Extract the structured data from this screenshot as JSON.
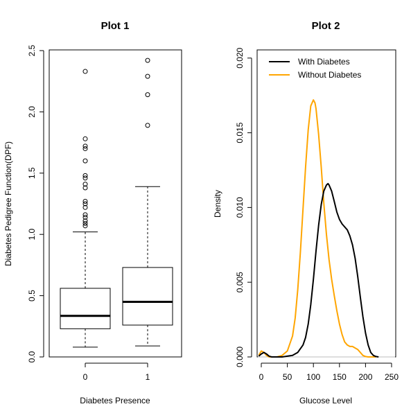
{
  "chart_data": [
    {
      "type": "box",
      "title": "Plot 1",
      "xlabel": "Diabetes Presence",
      "ylabel": "Diabetes Pedigree Function(DPF)",
      "ylim": [
        0,
        2.5
      ],
      "yticks": [
        "0.0",
        "0.5",
        "1.0",
        "1.5",
        "2.0",
        "2.5"
      ],
      "categories": [
        "0",
        "1"
      ],
      "boxes": [
        {
          "category": "0",
          "whisker_low": 0.08,
          "q1": 0.23,
          "median": 0.335,
          "q3": 0.56,
          "whisker_high": 1.02,
          "outliers": [
            1.07,
            1.09,
            1.11,
            1.14,
            1.16,
            1.22,
            1.25,
            1.27,
            1.38,
            1.41,
            1.46,
            1.48,
            1.6,
            1.7,
            1.72,
            1.78,
            2.33
          ]
        },
        {
          "category": "1",
          "whisker_low": 0.09,
          "q1": 0.26,
          "median": 0.45,
          "q3": 0.73,
          "whisker_high": 1.39,
          "outliers": [
            1.89,
            2.14,
            2.29,
            2.42
          ]
        }
      ]
    },
    {
      "type": "line",
      "title": "Plot 2",
      "xlabel": "Glucose Level",
      "ylabel": "Density",
      "xlim": [
        -8,
        258
      ],
      "ylim": [
        0,
        0.0205
      ],
      "xticks": [
        "0",
        "50",
        "100",
        "150",
        "200",
        "250"
      ],
      "yticks": [
        "0.000",
        "0.005",
        "0.010",
        "0.015",
        "0.020"
      ],
      "legend": "top-left",
      "colors": {
        "with": "#000000",
        "without": "#FFA500",
        "baseline": "#BEBEBE"
      },
      "series": [
        {
          "name": "With Diabetes",
          "x": [
            -5,
            0,
            5,
            10,
            15,
            20,
            30,
            40,
            50,
            60,
            70,
            80,
            85,
            90,
            95,
            100,
            105,
            110,
            115,
            120,
            125,
            128,
            130,
            135,
            140,
            145,
            150,
            155,
            160,
            165,
            170,
            175,
            180,
            185,
            190,
            195,
            200,
            205,
            210,
            215,
            220,
            225
          ],
          "y": [
            5e-05,
            0.0002,
            0.0003,
            0.0002,
            5e-05,
            0,
            0,
            0,
            5e-05,
            0.0001,
            0.0003,
            0.0008,
            0.0013,
            0.0022,
            0.0035,
            0.0052,
            0.0071,
            0.0088,
            0.0102,
            0.0111,
            0.0115,
            0.0116,
            0.0115,
            0.0111,
            0.0104,
            0.0097,
            0.0092,
            0.0089,
            0.0087,
            0.0085,
            0.0081,
            0.0075,
            0.0066,
            0.0054,
            0.004,
            0.0027,
            0.0016,
            0.0008,
            0.0003,
            0.0001,
            3e-05,
            0
          ]
        },
        {
          "name": "Without Diabetes",
          "x": [
            -5,
            0,
            5,
            10,
            15,
            20,
            25,
            30,
            40,
            50,
            60,
            65,
            70,
            75,
            80,
            85,
            90,
            95,
            100,
            103,
            105,
            110,
            115,
            120,
            125,
            130,
            135,
            140,
            145,
            150,
            155,
            160,
            165,
            170,
            175,
            180,
            185,
            190,
            195,
            200,
            205,
            210,
            215,
            220
          ],
          "y": [
            0.0001,
            0.0004,
            0.0003,
            0.0001,
            0,
            0,
            0,
            0,
            0.0001,
            0.0004,
            0.0014,
            0.0026,
            0.0045,
            0.007,
            0.0099,
            0.0127,
            0.0152,
            0.0168,
            0.0172,
            0.017,
            0.0166,
            0.0149,
            0.0127,
            0.0103,
            0.0082,
            0.0065,
            0.0052,
            0.0041,
            0.0031,
            0.0022,
            0.0015,
            0.001,
            0.0008,
            0.0007,
            0.0007,
            0.0006,
            0.0005,
            0.0003,
            0.0001,
            3e-05,
            0,
            0,
            0,
            0
          ]
        }
      ]
    }
  ]
}
